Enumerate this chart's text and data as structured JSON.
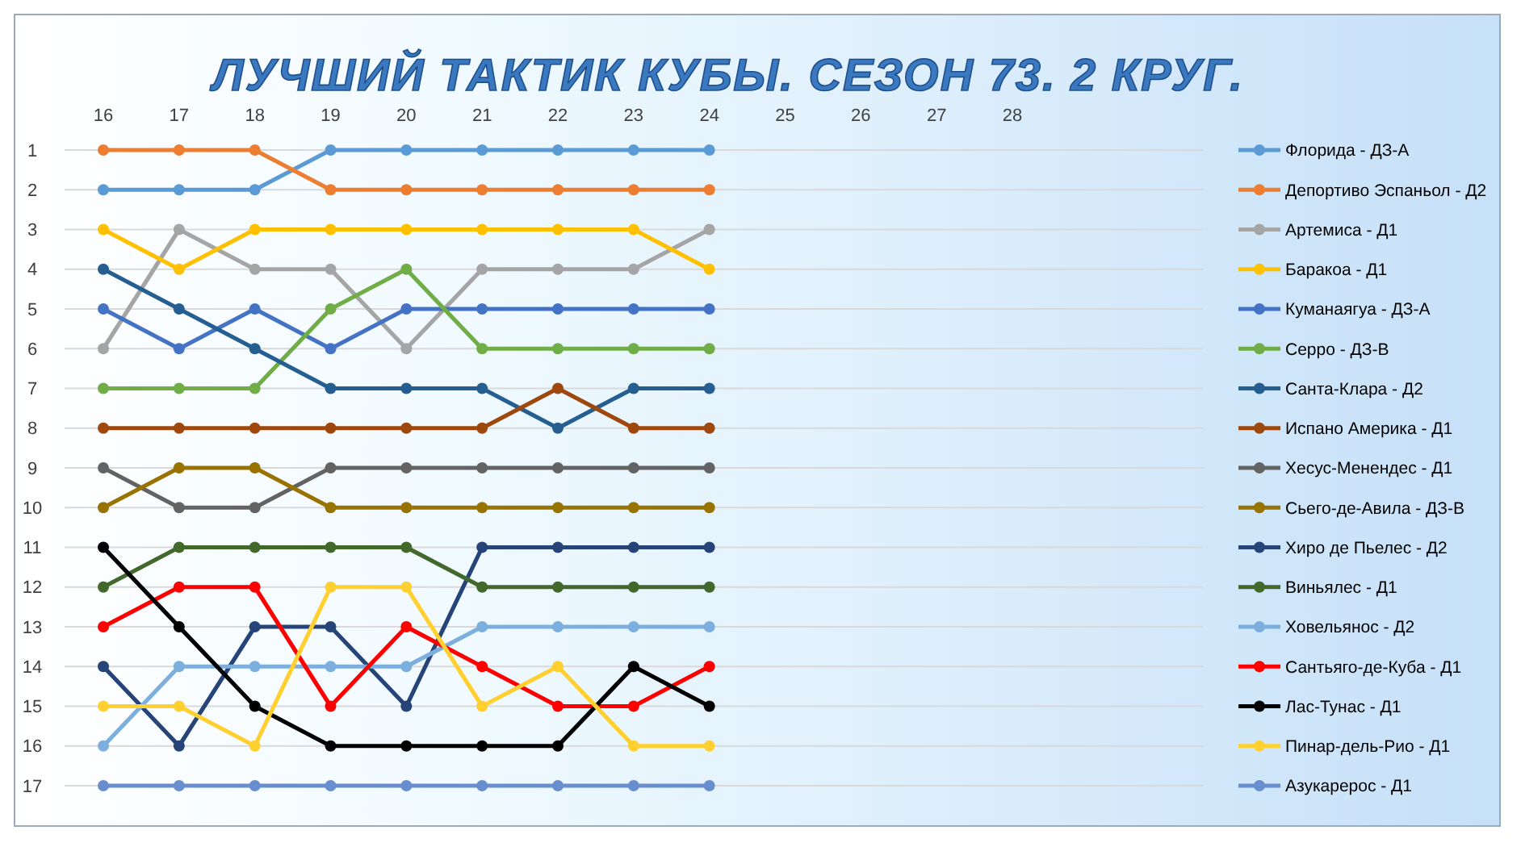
{
  "chart_data": {
    "type": "line",
    "title": "ЛУЧШИЙ ТАКТИК КУБЫ. СЕЗОН 73. 2 КРУГ.",
    "categories": [
      "16",
      "17",
      "18",
      "19",
      "20",
      "21",
      "22",
      "23",
      "24",
      "25",
      "26",
      "27",
      "28"
    ],
    "ylim": [
      17,
      1
    ],
    "yticks": [
      1,
      2,
      3,
      4,
      5,
      6,
      7,
      8,
      9,
      10,
      11,
      12,
      13,
      14,
      15,
      16,
      17
    ],
    "grid": "y",
    "legend": "right",
    "marker": "circle",
    "line_style": "solid",
    "series": [
      {
        "name": "Флорида - ДЗ-А",
        "color": "#5b9bd5",
        "values": [
          2,
          2,
          2,
          1,
          1,
          1,
          1,
          1,
          1,
          null,
          null,
          null,
          null
        ]
      },
      {
        "name": "Депортиво Эспаньол - Д2",
        "color": "#ed7d31",
        "values": [
          1,
          1,
          1,
          2,
          2,
          2,
          2,
          2,
          2,
          null,
          null,
          null,
          null
        ]
      },
      {
        "name": "Артемиса - Д1",
        "color": "#a5a5a5",
        "values": [
          6,
          3,
          4,
          4,
          6,
          4,
          4,
          4,
          3,
          null,
          null,
          null,
          null
        ]
      },
      {
        "name": "Баракоа - Д1",
        "color": "#ffc000",
        "values": [
          3,
          4,
          3,
          3,
          3,
          3,
          3,
          3,
          4,
          null,
          null,
          null,
          null
        ]
      },
      {
        "name": "Куманаягуа - ДЗ-А",
        "color": "#4472c4",
        "values": [
          5,
          6,
          5,
          6,
          5,
          5,
          5,
          5,
          5,
          null,
          null,
          null,
          null
        ]
      },
      {
        "name": "Серро - ДЗ-В",
        "color": "#70ad47",
        "values": [
          7,
          7,
          7,
          5,
          4,
          6,
          6,
          6,
          6,
          null,
          null,
          null,
          null
        ]
      },
      {
        "name": "Санта-Клара - Д2",
        "color": "#255e91",
        "values": [
          4,
          5,
          6,
          7,
          7,
          7,
          8,
          7,
          7,
          null,
          null,
          null,
          null
        ]
      },
      {
        "name": "Испано Америка - Д1",
        "color": "#9e480e",
        "values": [
          8,
          8,
          8,
          8,
          8,
          8,
          7,
          8,
          8,
          null,
          null,
          null,
          null
        ]
      },
      {
        "name": "Хесус-Менендес - Д1",
        "color": "#636363",
        "values": [
          9,
          10,
          10,
          9,
          9,
          9,
          9,
          9,
          9,
          null,
          null,
          null,
          null
        ]
      },
      {
        "name": "Сьего-де-Авила - ДЗ-В",
        "color": "#997300",
        "values": [
          10,
          9,
          9,
          10,
          10,
          10,
          10,
          10,
          10,
          null,
          null,
          null,
          null
        ]
      },
      {
        "name": "Хиро де Пьелес - Д2",
        "color": "#264478",
        "values": [
          14,
          16,
          13,
          13,
          15,
          11,
          11,
          11,
          11,
          null,
          null,
          null,
          null
        ]
      },
      {
        "name": "Виньялес - Д1",
        "color": "#43682b",
        "values": [
          12,
          11,
          11,
          11,
          11,
          12,
          12,
          12,
          12,
          null,
          null,
          null,
          null
        ]
      },
      {
        "name": "Ховельянос - Д2",
        "color": "#7cafdd",
        "values": [
          16,
          14,
          14,
          14,
          14,
          13,
          13,
          13,
          13,
          null,
          null,
          null,
          null
        ]
      },
      {
        "name": "Сантьяго-де-Куба - Д1",
        "color": "#ff0000",
        "values": [
          13,
          12,
          12,
          15,
          13,
          14,
          15,
          15,
          14,
          null,
          null,
          null,
          null
        ]
      },
      {
        "name": "Лас-Тунас - Д1",
        "color": "#000000",
        "values": [
          11,
          13,
          15,
          16,
          16,
          16,
          16,
          14,
          15,
          null,
          null,
          null,
          null
        ]
      },
      {
        "name": "Пинар-дель-Рио - Д1",
        "color": "#ffd030",
        "values": [
          15,
          15,
          16,
          12,
          12,
          15,
          14,
          16,
          16,
          null,
          null,
          null,
          null
        ]
      },
      {
        "name": "Азукарерос - Д1",
        "color": "#698ed0",
        "values": [
          17,
          17,
          17,
          17,
          17,
          17,
          17,
          17,
          17,
          null,
          null,
          null,
          null
        ]
      }
    ]
  }
}
